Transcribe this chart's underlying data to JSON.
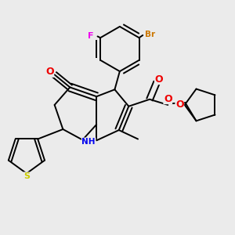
{
  "bg_color": "#ebebeb",
  "bond_color": "#000000",
  "atom_colors": {
    "Br": "#cc7700",
    "F": "#ee00ee",
    "O": "#ee0000",
    "N": "#0000ee",
    "S": "#cccc00",
    "C": "#000000"
  },
  "figsize": [
    3.0,
    3.0
  ],
  "dpi": 100
}
